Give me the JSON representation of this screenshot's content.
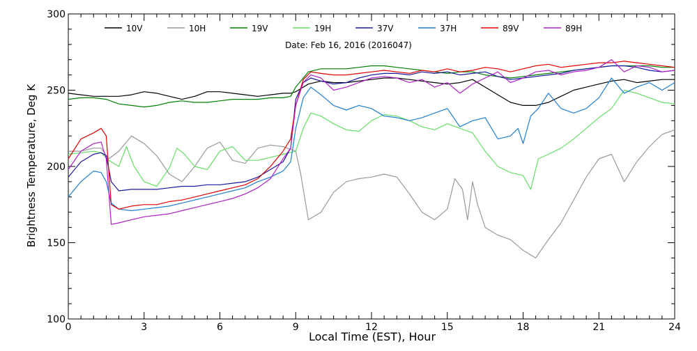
{
  "chart_data": {
    "type": "line",
    "title": "Date: Feb 16, 2016 (2016047)",
    "xlabel": "Local Time (EST), Hour",
    "ylabel": "Brightness Temperature, Deg K",
    "xlim": [
      0,
      24
    ],
    "ylim": [
      100,
      300
    ],
    "x_ticks": [
      0,
      3,
      6,
      9,
      12,
      15,
      18,
      21,
      24
    ],
    "y_ticks": [
      100,
      150,
      200,
      250,
      300
    ],
    "grid": false,
    "legend_position": "top",
    "series": [
      {
        "name": "10V",
        "color": "#000000",
        "x": [
          0,
          0.5,
          1,
          1.5,
          2,
          2.5,
          3,
          3.5,
          4,
          4.5,
          5,
          5.5,
          6,
          6.5,
          7,
          7.5,
          8,
          8.5,
          8.8,
          9,
          9.5,
          10,
          10.5,
          11,
          11.5,
          12,
          12.5,
          13,
          13.5,
          14,
          14.5,
          15,
          15.5,
          16,
          16.5,
          17,
          17.5,
          18,
          18.5,
          19,
          19.5,
          20,
          20.5,
          21,
          21.5,
          22,
          22.5,
          23,
          23.5,
          24
        ],
        "y": [
          248,
          247,
          246,
          246,
          246,
          247,
          249,
          248,
          246,
          244,
          246,
          249,
          249,
          248,
          247,
          246,
          247,
          248,
          248,
          249,
          254,
          256,
          255,
          255,
          256,
          257,
          258,
          258,
          257,
          256,
          255,
          254,
          255,
          257,
          252,
          247,
          242,
          240,
          240,
          242,
          246,
          250,
          252,
          254,
          256,
          257,
          255,
          256,
          257,
          257
        ]
      },
      {
        "name": "10H",
        "color": "#9a9a9a",
        "x": [
          0,
          0.5,
          1,
          1.3,
          1.6,
          2,
          2.5,
          3,
          3.5,
          4,
          4.5,
          5,
          5.5,
          6,
          6.5,
          7,
          7.5,
          8,
          8.5,
          9,
          9.2,
          9.5,
          10,
          10.5,
          11,
          11.5,
          12,
          12.5,
          13,
          13.5,
          14,
          14.5,
          15,
          15.3,
          15.6,
          15.8,
          16,
          16.2,
          16.5,
          17,
          17.5,
          18,
          18.5,
          19,
          19.5,
          20,
          20.5,
          21,
          21.5,
          22,
          22.5,
          23,
          23.5,
          24
        ],
        "y": [
          210,
          210,
          212,
          212,
          205,
          210,
          220,
          215,
          207,
          195,
          190,
          200,
          212,
          216,
          204,
          202,
          212,
          214,
          213,
          210,
          195,
          165,
          170,
          183,
          190,
          192,
          193,
          195,
          193,
          182,
          170,
          165,
          172,
          192,
          185,
          165,
          190,
          175,
          160,
          155,
          152,
          145,
          140,
          152,
          163,
          178,
          193,
          205,
          208,
          190,
          203,
          213,
          221,
          224
        ]
      },
      {
        "name": "19V",
        "color": "#008000",
        "x": [
          0,
          0.5,
          1,
          1.5,
          2,
          2.5,
          3,
          3.5,
          4,
          4.5,
          5,
          5.5,
          6,
          6.5,
          7,
          7.5,
          8,
          8.5,
          8.8,
          9,
          9.5,
          10,
          10.5,
          11,
          11.5,
          12,
          12.5,
          13,
          13.5,
          14,
          14.5,
          15,
          15.5,
          16,
          16.5,
          17,
          17.5,
          18,
          18.5,
          19,
          19.5,
          20,
          20.5,
          21,
          21.5,
          22,
          22.5,
          23,
          23.5,
          24
        ],
        "y": [
          244,
          245,
          245,
          244,
          241,
          240,
          239,
          240,
          242,
          243,
          242,
          242,
          243,
          244,
          244,
          244,
          245,
          245,
          246,
          252,
          262,
          264,
          264,
          264,
          265,
          266,
          266,
          265,
          264,
          263,
          262,
          261,
          262,
          262,
          260,
          259,
          258,
          259,
          260,
          261,
          262,
          263,
          264,
          265,
          266,
          266,
          266,
          266,
          265,
          265
        ]
      },
      {
        "name": "19H",
        "color": "#66e066",
        "x": [
          0,
          0.5,
          1,
          1.3,
          1.6,
          2,
          2.3,
          2.6,
          3,
          3.5,
          4,
          4.3,
          4.6,
          5,
          5.5,
          6,
          6.5,
          7,
          7.5,
          8,
          8.5,
          9,
          9.3,
          9.6,
          10,
          10.5,
          11,
          11.5,
          12,
          12.5,
          13,
          13.5,
          14,
          14.5,
          15,
          15.5,
          16,
          16.5,
          17,
          17.5,
          18,
          18.3,
          18.6,
          19,
          19.5,
          20,
          20.5,
          21,
          21.5,
          22,
          22.5,
          23,
          23.5,
          24
        ],
        "y": [
          208,
          209,
          210,
          209,
          204,
          200,
          213,
          200,
          190,
          187,
          199,
          212,
          208,
          200,
          198,
          210,
          213,
          204,
          204,
          206,
          208,
          210,
          225,
          235,
          233,
          228,
          224,
          223,
          230,
          234,
          233,
          230,
          226,
          224,
          228,
          225,
          222,
          210,
          200,
          196,
          194,
          185,
          205,
          208,
          212,
          218,
          225,
          232,
          238,
          250,
          248,
          245,
          242,
          241
        ]
      },
      {
        "name": "37V",
        "color": "#1a1aa0",
        "x": [
          0,
          0.5,
          1,
          1.3,
          1.5,
          1.7,
          2,
          2.5,
          3,
          3.5,
          4,
          4.5,
          5,
          5.5,
          6,
          6.5,
          7,
          7.5,
          8,
          8.5,
          8.8,
          9,
          9.3,
          9.6,
          10,
          10.5,
          11,
          11.5,
          12,
          12.5,
          13,
          13.5,
          14,
          14.5,
          15,
          15.5,
          16,
          16.5,
          17,
          17.5,
          18,
          18.5,
          19,
          19.5,
          20,
          20.5,
          21,
          21.5,
          22,
          22.5,
          23,
          23.5,
          24
        ],
        "y": [
          193,
          203,
          208,
          209,
          207,
          190,
          184,
          185,
          185,
          185,
          186,
          187,
          187,
          188,
          188,
          189,
          190,
          193,
          198,
          203,
          212,
          244,
          255,
          258,
          256,
          254,
          255,
          258,
          260,
          261,
          261,
          260,
          262,
          261,
          262,
          260,
          261,
          262,
          259,
          257,
          258,
          259,
          260,
          261,
          263,
          264,
          265,
          266,
          266,
          265,
          263,
          262,
          263
        ]
      },
      {
        "name": "37H",
        "color": "#1f7fd6",
        "x": [
          0,
          0.5,
          1,
          1.3,
          1.5,
          1.7,
          2,
          2.5,
          3,
          3.5,
          4,
          4.5,
          5,
          5.5,
          6,
          6.5,
          7,
          7.5,
          8,
          8.5,
          8.8,
          9,
          9.3,
          9.6,
          10,
          10.5,
          11,
          11.5,
          12,
          12.5,
          13,
          13.5,
          14,
          14.5,
          15,
          15.5,
          16,
          16.5,
          17,
          17.5,
          17.8,
          18,
          18.3,
          18.6,
          19,
          19.5,
          20,
          20.5,
          21,
          21.5,
          22,
          22.5,
          23,
          23.5,
          24
        ],
        "y": [
          180,
          190,
          197,
          196,
          190,
          176,
          172,
          171,
          172,
          173,
          174,
          176,
          178,
          180,
          182,
          184,
          186,
          190,
          193,
          197,
          203,
          225,
          245,
          252,
          247,
          240,
          237,
          240,
          238,
          233,
          232,
          230,
          232,
          235,
          238,
          226,
          230,
          232,
          218,
          220,
          225,
          215,
          233,
          238,
          248,
          238,
          235,
          238,
          245,
          258,
          248,
          252,
          255,
          250,
          255
        ]
      },
      {
        "name": "89V",
        "color": "#e00000",
        "x": [
          0,
          0.5,
          1,
          1.3,
          1.5,
          1.7,
          2,
          2.5,
          3,
          3.5,
          4,
          4.5,
          5,
          5.5,
          6,
          6.5,
          7,
          7.5,
          8,
          8.5,
          8.8,
          9,
          9.3,
          9.6,
          10,
          10.5,
          11,
          11.5,
          12,
          12.5,
          13,
          13.5,
          14,
          14.5,
          15,
          15.5,
          16,
          16.5,
          17,
          17.5,
          18,
          18.5,
          19,
          19.5,
          20,
          20.5,
          21,
          21.5,
          22,
          22.5,
          23,
          23.5,
          24
        ],
        "y": [
          205,
          218,
          222,
          225,
          220,
          175,
          172,
          174,
          175,
          175,
          177,
          178,
          180,
          182,
          184,
          186,
          188,
          192,
          200,
          210,
          218,
          240,
          257,
          262,
          261,
          260,
          260,
          261,
          262,
          263,
          262,
          261,
          263,
          262,
          264,
          262,
          263,
          265,
          264,
          262,
          264,
          266,
          267,
          265,
          266,
          267,
          268,
          268,
          269,
          268,
          267,
          266,
          265
        ]
      },
      {
        "name": "89H",
        "color": "#b020c8",
        "x": [
          0,
          0.5,
          1,
          1.3,
          1.5,
          1.7,
          2,
          2.5,
          3,
          3.5,
          4,
          4.5,
          5,
          5.5,
          6,
          6.5,
          7,
          7.5,
          8,
          8.5,
          8.8,
          9,
          9.3,
          9.6,
          10,
          10.5,
          11,
          11.5,
          12,
          12.5,
          13,
          13.5,
          14,
          14.5,
          15,
          15.5,
          16,
          16.5,
          17,
          17.5,
          18,
          18.5,
          19,
          19.5,
          20,
          20.5,
          21,
          21.5,
          22,
          22.5,
          23,
          23.5,
          24
        ],
        "y": [
          198,
          210,
          215,
          216,
          205,
          162,
          163,
          165,
          167,
          168,
          169,
          171,
          173,
          175,
          177,
          179,
          182,
          186,
          192,
          205,
          212,
          240,
          255,
          260,
          258,
          250,
          252,
          255,
          258,
          259,
          258,
          255,
          257,
          252,
          255,
          248,
          254,
          258,
          262,
          255,
          258,
          262,
          263,
          260,
          262,
          263,
          265,
          270,
          262,
          266,
          265,
          262,
          263
        ]
      }
    ]
  }
}
